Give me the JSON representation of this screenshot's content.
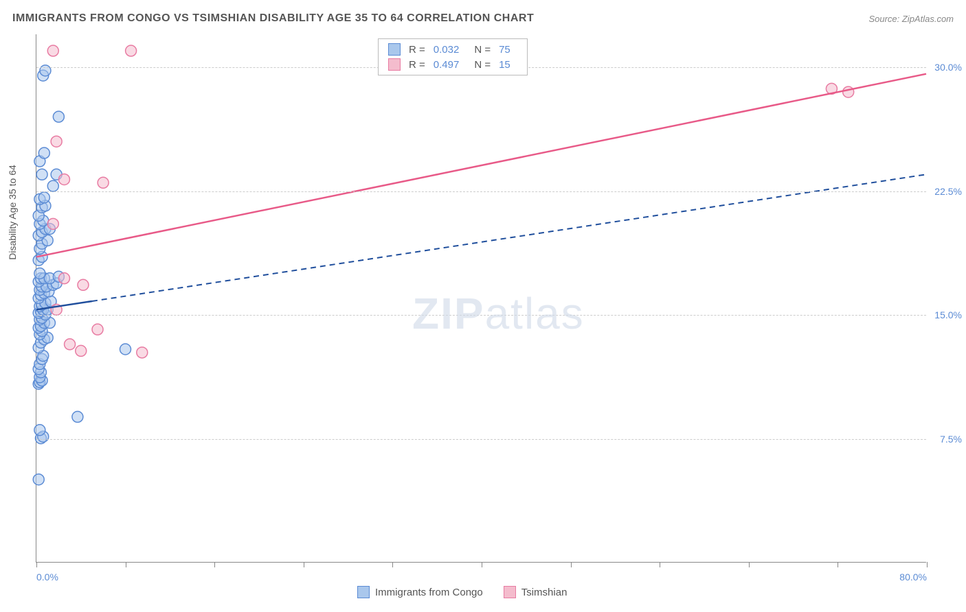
{
  "title": "IMMIGRANTS FROM CONGO VS TSIMSHIAN DISABILITY AGE 35 TO 64 CORRELATION CHART",
  "source": "Source: ZipAtlas.com",
  "y_axis_label": "Disability Age 35 to 64",
  "watermark_a": "ZIP",
  "watermark_b": "atlas",
  "chart": {
    "type": "scatter",
    "xlim": [
      0,
      80
    ],
    "ylim": [
      0,
      32
    ],
    "x_ticks": [
      0,
      8,
      16,
      24,
      32,
      40,
      48,
      56,
      64,
      72,
      80
    ],
    "x_tick_labels": {
      "0": "0.0%",
      "80": "80.0%"
    },
    "y_gridlines": [
      7.5,
      15.0,
      22.5,
      30.0
    ],
    "y_tick_labels": {
      "7.5": "7.5%",
      "15.0": "15.0%",
      "22.5": "22.5%",
      "30.0": "30.0%"
    },
    "background_color": "#ffffff",
    "grid_color": "#cccccc",
    "axis_color": "#888888",
    "text_color": "#555555",
    "tick_label_color": "#5b8bd4",
    "marker_radius": 8,
    "marker_opacity": 0.55,
    "series": [
      {
        "name": "Immigrants from Congo",
        "color_fill": "#a9c7ec",
        "color_stroke": "#5b8bd4",
        "trend_color": "#1f4e9c",
        "trend_solid_until_x": 5.0,
        "trend": {
          "x1": 0,
          "y1": 15.3,
          "x2": 80,
          "y2": 23.5
        },
        "points": [
          [
            0.2,
            5.0
          ],
          [
            0.4,
            7.5
          ],
          [
            0.6,
            7.6
          ],
          [
            0.3,
            8.0
          ],
          [
            3.7,
            8.8
          ],
          [
            0.2,
            10.8
          ],
          [
            0.3,
            10.9
          ],
          [
            0.5,
            11.0
          ],
          [
            0.3,
            11.2
          ],
          [
            0.4,
            11.5
          ],
          [
            0.2,
            11.7
          ],
          [
            0.3,
            12.0
          ],
          [
            0.5,
            12.3
          ],
          [
            0.6,
            12.5
          ],
          [
            8.0,
            12.9
          ],
          [
            0.2,
            13.0
          ],
          [
            0.4,
            13.3
          ],
          [
            0.7,
            13.5
          ],
          [
            1.0,
            13.6
          ],
          [
            0.3,
            13.8
          ],
          [
            0.5,
            14.0
          ],
          [
            0.2,
            14.2
          ],
          [
            0.4,
            14.3
          ],
          [
            0.7,
            14.5
          ],
          [
            1.2,
            14.5
          ],
          [
            0.3,
            14.7
          ],
          [
            0.5,
            14.8
          ],
          [
            0.8,
            15.0
          ],
          [
            0.2,
            15.1
          ],
          [
            0.4,
            15.2
          ],
          [
            0.6,
            15.3
          ],
          [
            1.0,
            15.3
          ],
          [
            0.3,
            15.5
          ],
          [
            0.5,
            15.6
          ],
          [
            0.8,
            15.7
          ],
          [
            1.3,
            15.8
          ],
          [
            0.2,
            16.0
          ],
          [
            0.4,
            16.2
          ],
          [
            0.7,
            16.3
          ],
          [
            1.1,
            16.4
          ],
          [
            0.3,
            16.5
          ],
          [
            0.5,
            16.7
          ],
          [
            0.9,
            16.7
          ],
          [
            1.5,
            16.8
          ],
          [
            1.8,
            16.9
          ],
          [
            0.2,
            17.0
          ],
          [
            0.4,
            17.2
          ],
          [
            0.7,
            17.2
          ],
          [
            1.2,
            17.2
          ],
          [
            2.0,
            17.3
          ],
          [
            0.3,
            17.5
          ],
          [
            0.2,
            18.3
          ],
          [
            0.5,
            18.5
          ],
          [
            0.3,
            19.0
          ],
          [
            0.5,
            19.3
          ],
          [
            1.0,
            19.5
          ],
          [
            0.2,
            19.8
          ],
          [
            0.5,
            20.0
          ],
          [
            0.8,
            20.2
          ],
          [
            1.2,
            20.2
          ],
          [
            0.3,
            20.5
          ],
          [
            0.6,
            20.7
          ],
          [
            0.2,
            21.0
          ],
          [
            0.5,
            21.5
          ],
          [
            0.8,
            21.6
          ],
          [
            0.3,
            22.0
          ],
          [
            0.7,
            22.1
          ],
          [
            1.5,
            22.8
          ],
          [
            0.5,
            23.5
          ],
          [
            1.8,
            23.5
          ],
          [
            0.3,
            24.3
          ],
          [
            0.7,
            24.8
          ],
          [
            2.0,
            27.0
          ],
          [
            0.6,
            29.5
          ],
          [
            0.8,
            29.8
          ]
        ]
      },
      {
        "name": "Tsimshian",
        "color_fill": "#f4bccd",
        "color_stroke": "#e87ba2",
        "trend_color": "#e85a88",
        "trend_solid_until_x": 80.0,
        "trend": {
          "x1": 0,
          "y1": 18.5,
          "x2": 80,
          "y2": 29.6
        },
        "points": [
          [
            4.0,
            12.8
          ],
          [
            9.5,
            12.7
          ],
          [
            3.0,
            13.2
          ],
          [
            5.5,
            14.1
          ],
          [
            1.8,
            15.3
          ],
          [
            4.2,
            16.8
          ],
          [
            2.5,
            17.2
          ],
          [
            1.5,
            20.5
          ],
          [
            6.0,
            23.0
          ],
          [
            2.5,
            23.2
          ],
          [
            1.8,
            25.5
          ],
          [
            8.5,
            31.0
          ],
          [
            1.5,
            31.0
          ],
          [
            71.5,
            28.7
          ],
          [
            73.0,
            28.5
          ]
        ]
      }
    ]
  },
  "stats": [
    {
      "series_idx": 0,
      "r_label": "R =",
      "r": "0.032",
      "n_label": "N =",
      "n": "75"
    },
    {
      "series_idx": 1,
      "r_label": "R =",
      "r": "0.497",
      "n_label": "N =",
      "n": "15"
    }
  ],
  "legend": [
    {
      "series_idx": 0,
      "label": "Immigrants from Congo"
    },
    {
      "series_idx": 1,
      "label": "Tsimshian"
    }
  ]
}
